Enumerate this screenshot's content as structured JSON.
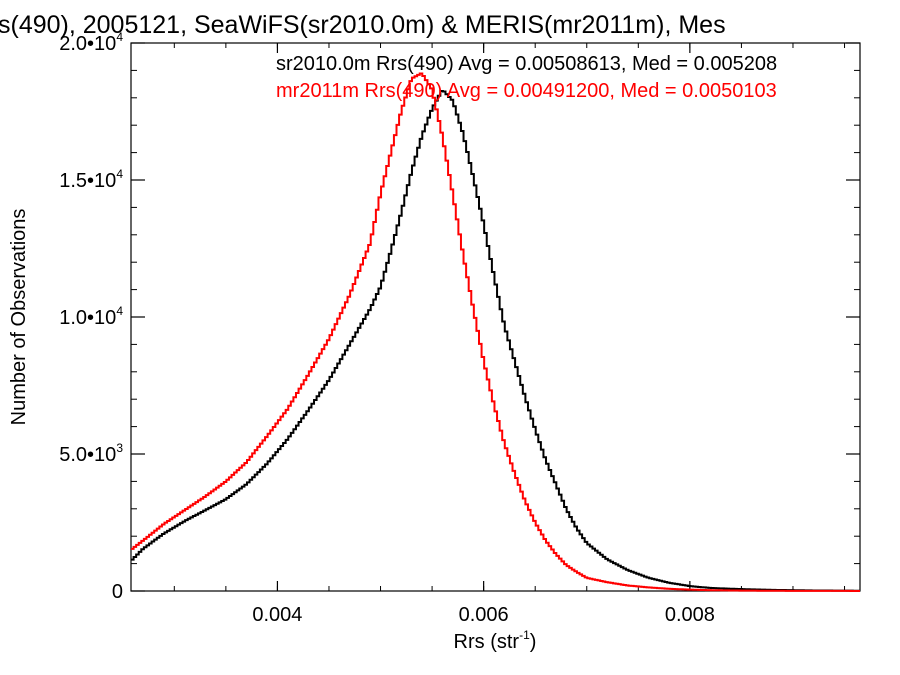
{
  "chart_data": {
    "type": "line",
    "title": "s(490), 2005121, SeaWiFS(sr2010.0m) & MERIS(mr2011m), Mes",
    "xlabel": "Rrs (str",
    "xlabel_sup": "-1",
    "xlabel_close": ")",
    "ylabel": "Number of Observations",
    "xlim": [
      0.00258,
      0.00965
    ],
    "ylim": [
      0,
      20000
    ],
    "x_ticks": [
      {
        "value": 0.004,
        "label": "0.004"
      },
      {
        "value": 0.006,
        "label": "0.006"
      },
      {
        "value": 0.008,
        "label": "0.008"
      }
    ],
    "y_ticks": [
      {
        "value": 0,
        "mant": "0",
        "exp": ""
      },
      {
        "value": 5000,
        "mant": "5.0•10",
        "exp": "3"
      },
      {
        "value": 10000,
        "mant": "1.0•10",
        "exp": "4"
      },
      {
        "value": 15000,
        "mant": "1.5•10",
        "exp": "4"
      },
      {
        "value": 20000,
        "mant": "2.0•10",
        "exp": "4"
      }
    ],
    "grid": false,
    "legend_position": "top-right",
    "series": [
      {
        "name": "sr2010.0m Rrs(490) Avg = 0.00508613, Med = 0.005208",
        "color": "#000000",
        "x": [
          0.00258,
          0.0027,
          0.0029,
          0.0031,
          0.0033,
          0.0035,
          0.0037,
          0.0039,
          0.0041,
          0.0043,
          0.0045,
          0.0047,
          0.0049,
          0.005,
          0.0051,
          0.0052,
          0.0053,
          0.0054,
          0.0055,
          0.0056,
          0.0057,
          0.0058,
          0.0059,
          0.006,
          0.0061,
          0.0062,
          0.0063,
          0.0064,
          0.0065,
          0.0066,
          0.0067,
          0.0068,
          0.0069,
          0.007,
          0.0072,
          0.0074,
          0.0076,
          0.0078,
          0.008,
          0.0082,
          0.0085,
          0.0088,
          0.0092,
          0.00965
        ],
        "y": [
          1100,
          1550,
          2100,
          2550,
          2950,
          3350,
          3900,
          4650,
          5550,
          6600,
          7700,
          9000,
          10300,
          11100,
          12400,
          13800,
          15300,
          16600,
          17600,
          18300,
          17900,
          16700,
          15100,
          13400,
          11500,
          9700,
          8400,
          7100,
          5900,
          4800,
          3900,
          3000,
          2300,
          1750,
          1150,
          760,
          480,
          300,
          180,
          110,
          70,
          40,
          20,
          10
        ]
      },
      {
        "name": "mr2011m Rrs(490) Avg = 0.00491200, Med = 0.0050103",
        "color": "#ff0000",
        "x": [
          0.00258,
          0.0027,
          0.0029,
          0.0031,
          0.0033,
          0.0035,
          0.0037,
          0.0039,
          0.0041,
          0.0043,
          0.0045,
          0.0047,
          0.0049,
          0.005,
          0.0051,
          0.0052,
          0.0053,
          0.0054,
          0.0055,
          0.0056,
          0.0057,
          0.0058,
          0.0059,
          0.006,
          0.0061,
          0.0062,
          0.0063,
          0.0064,
          0.0065,
          0.0066,
          0.0067,
          0.0068,
          0.0069,
          0.007,
          0.0072,
          0.0074,
          0.0076,
          0.0078,
          0.008,
          0.0082,
          0.0085,
          0.0088,
          0.0092,
          0.00965
        ],
        "y": [
          1500,
          1850,
          2450,
          2950,
          3450,
          4000,
          4700,
          5650,
          6650,
          7900,
          9200,
          10800,
          12700,
          14500,
          16000,
          17500,
          18700,
          18900,
          18300,
          16600,
          14500,
          12300,
          10300,
          8400,
          6800,
          5400,
          4300,
          3300,
          2500,
          1850,
          1350,
          950,
          700,
          480,
          320,
          200,
          130,
          80,
          50,
          30,
          15,
          8,
          4,
          2
        ]
      }
    ]
  }
}
